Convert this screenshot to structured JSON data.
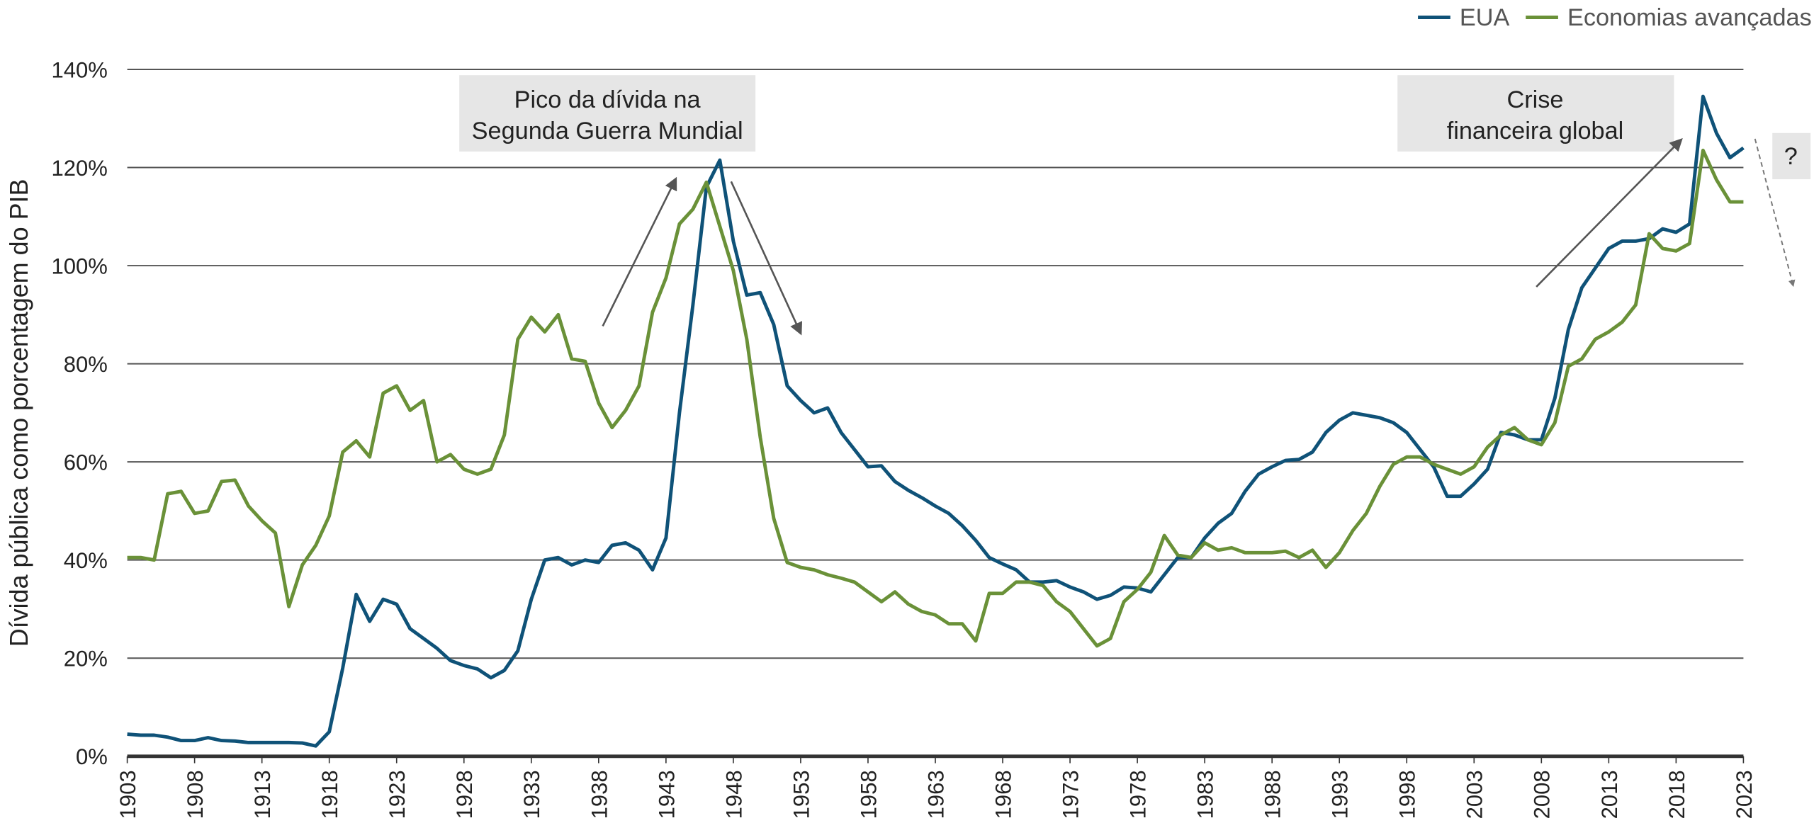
{
  "chart_data": {
    "type": "line",
    "y_label": "Dívida pública como porcentagem do PIB",
    "x": [
      1903,
      1904,
      1905,
      1906,
      1907,
      1908,
      1909,
      1910,
      1911,
      1912,
      1913,
      1914,
      1915,
      1916,
      1917,
      1918,
      1919,
      1920,
      1921,
      1922,
      1923,
      1924,
      1925,
      1926,
      1927,
      1928,
      1929,
      1930,
      1931,
      1932,
      1933,
      1934,
      1935,
      1936,
      1937,
      1938,
      1939,
      1940,
      1941,
      1942,
      1943,
      1944,
      1945,
      1946,
      1947,
      1948,
      1949,
      1950,
      1951,
      1952,
      1953,
      1954,
      1955,
      1956,
      1957,
      1958,
      1959,
      1960,
      1961,
      1962,
      1963,
      1964,
      1965,
      1966,
      1967,
      1968,
      1969,
      1970,
      1971,
      1972,
      1973,
      1974,
      1975,
      1976,
      1977,
      1978,
      1979,
      1980,
      1981,
      1982,
      1983,
      1984,
      1985,
      1986,
      1987,
      1988,
      1989,
      1990,
      1991,
      1992,
      1993,
      1994,
      1995,
      1996,
      1997,
      1998,
      1999,
      2000,
      2001,
      2002,
      2003,
      2004,
      2005,
      2006,
      2007,
      2008,
      2009,
      2010,
      2011,
      2012,
      2013,
      2014,
      2015,
      2016,
      2017,
      2018,
      2019,
      2020,
      2021,
      2022,
      2023
    ],
    "series": [
      {
        "name": "EUA",
        "color": "#0f5278",
        "values": [
          4.5,
          4.3,
          4.3,
          3.9,
          3.2,
          3.2,
          3.8,
          3.2,
          3.1,
          2.8,
          2.8,
          2.8,
          2.8,
          2.7,
          2.1,
          5,
          18,
          33,
          27.5,
          32,
          31,
          26,
          24,
          22,
          19.5,
          18.5,
          17.8,
          16,
          17.5,
          21.5,
          32,
          40,
          40.5,
          39,
          40,
          39.5,
          43,
          43.5,
          42,
          38,
          44.5,
          70,
          92,
          116,
          121.5,
          105,
          94,
          94.5,
          88,
          75.5,
          72.5,
          70,
          71,
          66,
          62.5,
          59,
          59.2,
          56,
          54.2,
          52.7,
          51,
          49.5,
          47,
          44,
          40.5,
          39.2,
          38,
          35.5,
          35.5,
          35.8,
          34.5,
          33.5,
          32,
          32.8,
          34.5,
          34.3,
          33.5,
          37,
          40.5,
          40.5,
          44.5,
          47.5,
          49.5,
          54,
          57.5,
          59,
          60.3,
          60.5,
          62,
          66,
          68.5,
          70,
          69.5,
          69,
          68,
          66,
          62.5,
          59,
          53,
          53,
          55.5,
          58.5,
          66,
          65.5,
          64.5,
          64.5,
          73,
          87,
          95.5,
          99.5,
          103.5,
          105,
          105,
          105.5,
          107.5,
          106.8,
          108.5,
          134.5,
          127,
          122,
          124
        ]
      },
      {
        "name": "Economias avançadas",
        "color": "#6a9138",
        "values": [
          40.5,
          40.5,
          40,
          53.5,
          54,
          49.5,
          50,
          56,
          56.3,
          51,
          48,
          45.5,
          30.5,
          39,
          43,
          49,
          62,
          64.3,
          61,
          74,
          75.5,
          70.5,
          72.5,
          60,
          61.5,
          58.5,
          57.5,
          58.5,
          65.5,
          85,
          89.5,
          86.5,
          90,
          81,
          80.5,
          72,
          67,
          70.5,
          75.5,
          90.5,
          97.5,
          108.5,
          111.5,
          117,
          108,
          99,
          85,
          65,
          48.5,
          39.5,
          38.5,
          38,
          37,
          36.3,
          35.5,
          33.5,
          31.5,
          33.5,
          31,
          29.5,
          28.8,
          27,
          27,
          23.5,
          33.2,
          33.2,
          35.5,
          35.5,
          34.8,
          31.5,
          29.5,
          26,
          22.5,
          24,
          31.5,
          34,
          37.5,
          45,
          41,
          40.5,
          43.5,
          42,
          42.5,
          41.5,
          41.5,
          41.5,
          41.8,
          40.5,
          42,
          38.5,
          41.5,
          46,
          49.5,
          55,
          59.5,
          61,
          61,
          59.5,
          58.5,
          57.5,
          59,
          63,
          65.5,
          67,
          64.5,
          63.5,
          68,
          79.5,
          81,
          85,
          86.5,
          88.5,
          92,
          106.5,
          103.5,
          103,
          104.5,
          123.5,
          117.5,
          113,
          113
        ]
      }
    ],
    "xlim": [
      1903,
      2023
    ],
    "xticks": [
      1903,
      1908,
      1913,
      1918,
      1923,
      1928,
      1933,
      1938,
      1943,
      1948,
      1953,
      1958,
      1963,
      1968,
      1973,
      1978,
      1983,
      1988,
      1993,
      1998,
      2003,
      2008,
      2013,
      2018,
      2023
    ],
    "ylim": [
      0,
      140
    ],
    "yticks": [
      {
        "value": 0,
        "label": "0%"
      },
      {
        "value": 20,
        "label": "20%"
      },
      {
        "value": 40,
        "label": "40%"
      },
      {
        "value": 60,
        "label": "60%"
      },
      {
        "value": 80,
        "label": "80%"
      },
      {
        "value": 100,
        "label": "100%"
      },
      {
        "value": 120,
        "label": "120%"
      },
      {
        "value": 140,
        "label": "140%"
      }
    ],
    "grid": true,
    "legend": "top-right",
    "annotations": [
      {
        "lines": [
          "Pico da dívida na",
          "Segunda Guerra Mundial"
        ]
      },
      {
        "lines": [
          "Crise",
          "financeira global"
        ]
      },
      {
        "lines": [
          "?"
        ]
      }
    ]
  }
}
